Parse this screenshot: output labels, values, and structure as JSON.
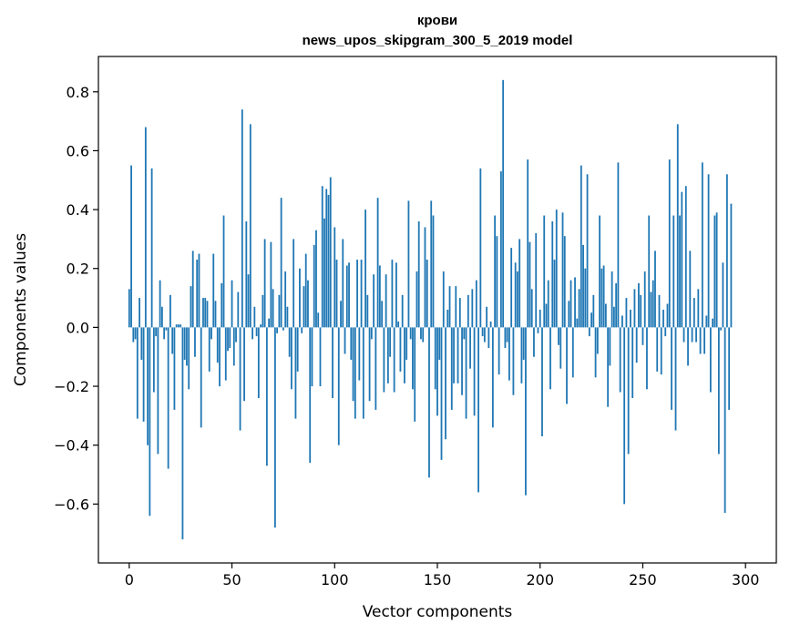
{
  "chart_data": {
    "type": "bar",
    "title": "крови",
    "subtitle": "news_upos_skipgram_300_5_2019 model",
    "xlabel": "Vector components",
    "ylabel": "Components values",
    "xlim": [
      -15,
      315
    ],
    "ylim": [
      -0.8,
      0.92
    ],
    "xticks": [
      0,
      50,
      100,
      150,
      200,
      250,
      300
    ],
    "xtick_labels": [
      "0",
      "50",
      "100",
      "150",
      "200",
      "250",
      "300"
    ],
    "yticks": [
      -0.6,
      -0.4,
      -0.2,
      0.0,
      0.2,
      0.4,
      0.6,
      0.8
    ],
    "ytick_labels": [
      "−0.6",
      "−0.4",
      "−0.2",
      "0.0",
      "0.2",
      "0.4",
      "0.6",
      "0.8"
    ],
    "grid": false,
    "legend": "none",
    "bar_color": "#1f77b4",
    "x_start": 0,
    "values": [
      0.13,
      0.55,
      -0.05,
      -0.04,
      -0.31,
      0.1,
      -0.11,
      -0.32,
      0.68,
      -0.4,
      -0.64,
      0.54,
      -0.22,
      -0.03,
      -0.43,
      0.16,
      0.07,
      -0.04,
      -0.01,
      -0.48,
      0.11,
      -0.09,
      -0.28,
      0.01,
      0.01,
      0.01,
      -0.72,
      -0.11,
      -0.13,
      -0.21,
      0.14,
      0.26,
      -0.1,
      0.23,
      0.25,
      -0.34,
      0.1,
      0.1,
      0.09,
      -0.15,
      -0.04,
      0.25,
      0.09,
      -0.12,
      -0.2,
      0.15,
      0.38,
      -0.18,
      -0.08,
      -0.07,
      0.16,
      -0.13,
      -0.05,
      0.12,
      -0.35,
      0.74,
      -0.25,
      0.36,
      0.18,
      0.69,
      -0.04,
      0.07,
      -0.03,
      -0.24,
      0.01,
      0.11,
      0.3,
      -0.47,
      0.03,
      0.29,
      0.13,
      -0.68,
      -0.02,
      0.11,
      0.44,
      -0.01,
      0.19,
      0.07,
      -0.1,
      -0.21,
      0.3,
      -0.31,
      -0.15,
      0.2,
      -0.02,
      0.14,
      0.25,
      0.16,
      -0.46,
      -0.2,
      0.28,
      0.33,
      0.05,
      -0.2,
      0.48,
      0.37,
      0.47,
      0.45,
      0.51,
      -0.24,
      0.34,
      0.23,
      -0.4,
      0.09,
      0.3,
      -0.09,
      0.21,
      0.22,
      -0.11,
      -0.25,
      -0.31,
      0.23,
      -0.18,
      0.23,
      -0.31,
      0.4,
      0.11,
      -0.25,
      -0.04,
      0.18,
      -0.28,
      0.44,
      0.21,
      0.09,
      -0.22,
      0.18,
      -0.19,
      -0.1,
      0.23,
      -0.22,
      0.22,
      0.02,
      -0.15,
      0.11,
      -0.19,
      -0.11,
      0.43,
      -0.04,
      -0.21,
      -0.32,
      0.19,
      0.36,
      -0.04,
      -0.05,
      0.34,
      0.23,
      -0.51,
      0.43,
      0.38,
      -0.21,
      -0.3,
      -0.11,
      -0.45,
      0.19,
      -0.38,
      0.06,
      0.14,
      -0.28,
      -0.19,
      0.14,
      -0.19,
      0.1,
      -0.23,
      -0.04,
      -0.31,
      0.11,
      -0.14,
      0.13,
      -0.3,
      0.16,
      -0.56,
      0.54,
      -0.03,
      -0.05,
      0.07,
      -0.07,
      0.02,
      -0.34,
      0.38,
      0.31,
      -0.16,
      0.53,
      0.84,
      -0.07,
      -0.05,
      -0.18,
      0.27,
      -0.23,
      0.22,
      0.19,
      0.3,
      -0.19,
      -0.11,
      -0.57,
      0.57,
      0.29,
      0.13,
      -0.1,
      0.32,
      -0.02,
      0.06,
      -0.37,
      0.38,
      0.08,
      0.16,
      -0.21,
      0.36,
      0.23,
      0.4,
      -0.06,
      -0.14,
      0.39,
      0.31,
      -0.26,
      0.09,
      0.16,
      -0.17,
      0.17,
      0.03,
      0.13,
      0.55,
      0.28,
      0.2,
      0.52,
      -0.03,
      0.05,
      0.11,
      -0.17,
      -0.09,
      0.38,
      0.2,
      0.21,
      0.08,
      -0.27,
      -0.13,
      0.19,
      0.07,
      0.15,
      0.56,
      -0.22,
      0.04,
      -0.6,
      0.1,
      -0.43,
      0.06,
      -0.24,
      0.13,
      -0.12,
      0.15,
      0.11,
      -0.06,
      0.19,
      -0.21,
      0.38,
      0.12,
      0.16,
      0.26,
      -0.15,
      0.11,
      -0.16,
      0.06,
      -0.03,
      0.08,
      0.57,
      -0.28,
      0.38,
      -0.35,
      0.69,
      0.38,
      0.46,
      -0.05,
      0.48,
      -0.13,
      0.26,
      -0.05,
      0.1,
      -0.05,
      0.13,
      -0.09,
      0.56,
      -0.09,
      0.04,
      0.52,
      -0.22,
      0.03,
      0.38,
      0.39,
      -0.43,
      -0.01,
      0.22,
      -0.63,
      0.52,
      -0.28,
      0.42
    ]
  }
}
